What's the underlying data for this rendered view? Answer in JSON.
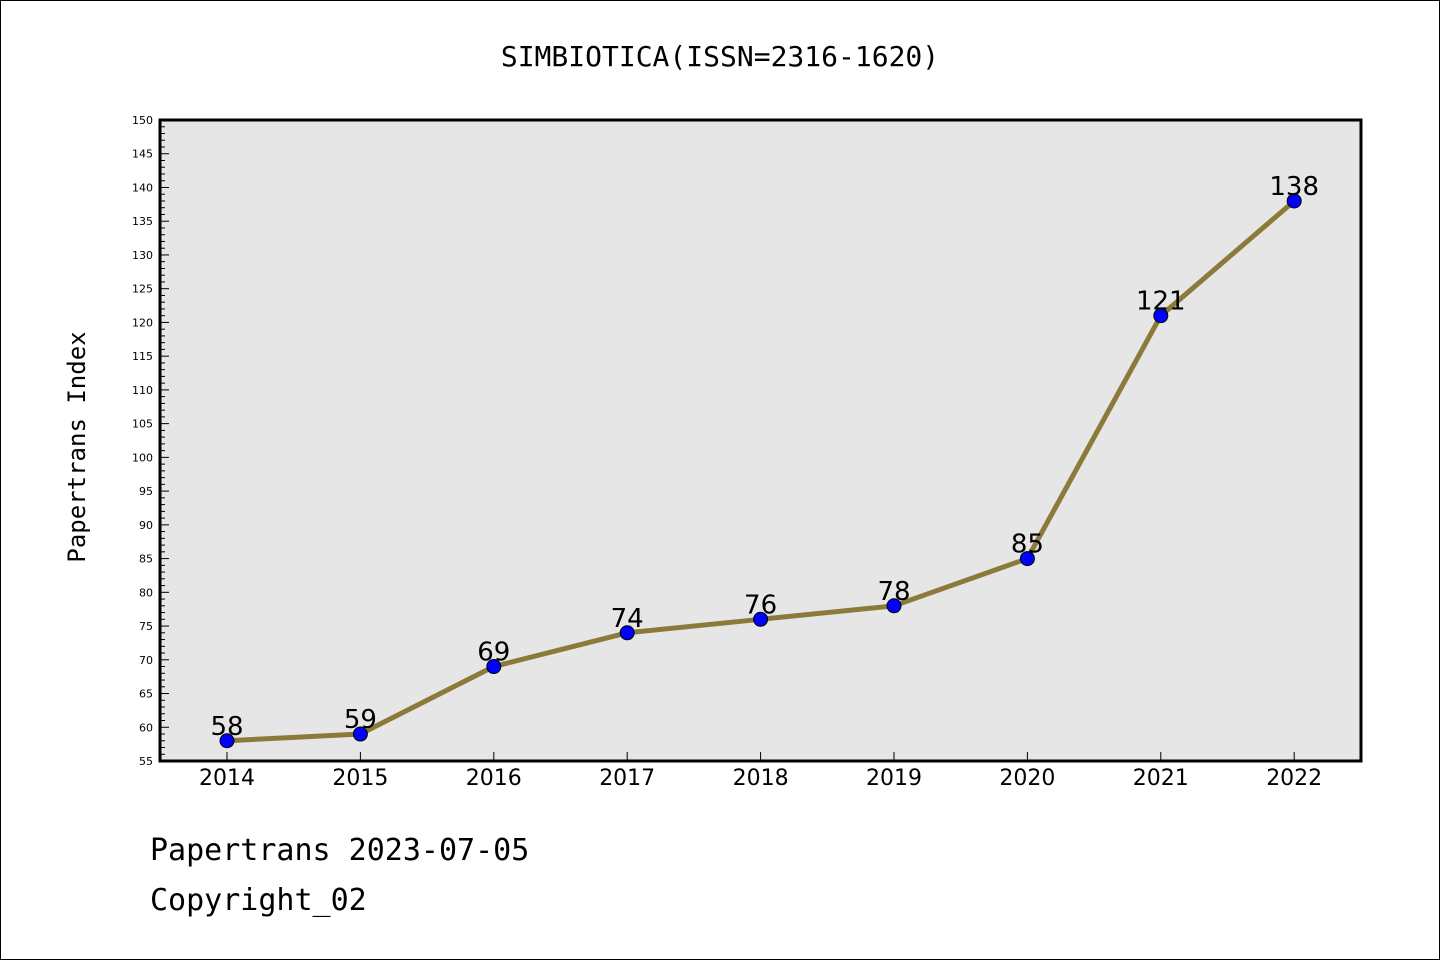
{
  "chart_data": {
    "type": "line",
    "title": "SIMBIOTICA(ISSN=2316-1620)",
    "xlabel": "",
    "ylabel": "Papertrans Index",
    "categories": [
      "2014",
      "2015",
      "2016",
      "2017",
      "2018",
      "2019",
      "2020",
      "2021",
      "2022"
    ],
    "series": [
      {
        "values": [
          58,
          59,
          69,
          74,
          76,
          78,
          85,
          121,
          138
        ]
      }
    ],
    "ylim": [
      55,
      150
    ],
    "y_ticks": [
      55,
      60,
      65,
      70,
      75,
      80,
      85,
      90,
      95,
      100,
      105,
      110,
      115,
      120,
      125,
      130,
      135,
      140,
      145,
      150
    ],
    "data_labels": true,
    "grid": false,
    "legend": "none",
    "colors": {
      "line": "#8c7a3a",
      "marker": "#0000ff",
      "plot_background": "#e6e6e6"
    }
  },
  "footer": {
    "date_line": "Papertrans 2023-07-05",
    "copyright": "Copyright_02"
  }
}
